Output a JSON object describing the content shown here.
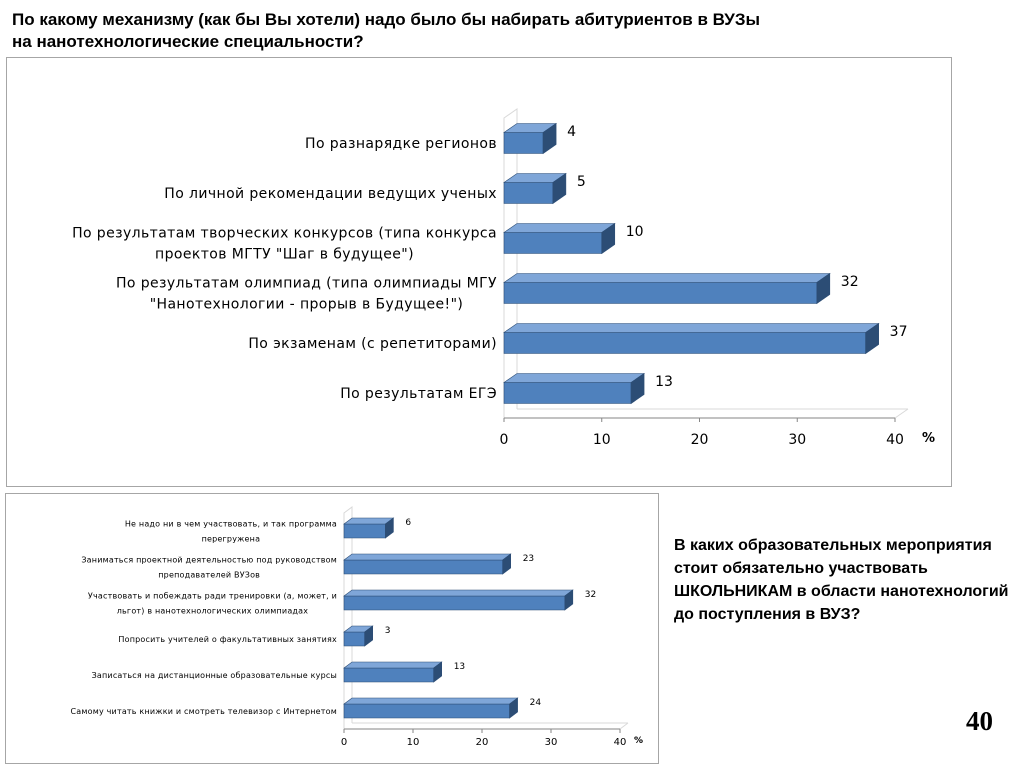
{
  "page": {
    "title_line1": "По какому механизму (как бы Вы хотели) надо было бы набирать абитуриентов в ВУЗы",
    "title_line2": "на нанотехнологические специальности?",
    "question_text": "В каких образовательных мероприятия стоит обязательно участвовать ШКОЛЬНИКАМ в области нанотехнологий до поступления в ВУЗ?",
    "page_number": "40"
  },
  "colors": {
    "bar_front": "#4f81bd",
    "bar_top": "#7fa6d8",
    "bar_side": "#2c4d75",
    "wall": "#d9d9d9",
    "axis": "#868686"
  },
  "chart_data": [
    {
      "type": "bar",
      "orientation": "horizontal",
      "style": "3d",
      "categories": [
        [
          "По разнарядке регионов"
        ],
        [
          "По личной рекомендации ведущих ученых"
        ],
        [
          "По результатам творческих конкурсов (типа конкурса",
          "проектов МГТУ \"Шаг в будущее\")"
        ],
        [
          "По результатам олимпиад (типа олимпиады МГУ",
          "\"Нанотехнологии - прорыв в Будущее!\")"
        ],
        [
          "По экзаменам (с репетиторами)"
        ],
        [
          "По результатам ЕГЭ"
        ]
      ],
      "values": [
        4,
        5,
        10,
        32,
        37,
        13
      ],
      "value_labels": [
        "4",
        "5",
        "10",
        "32",
        "37",
        "13"
      ],
      "x_ticks": [
        "0",
        "10",
        "20",
        "30",
        "40"
      ],
      "xlim": [
        0,
        40
      ],
      "xlabel": "%",
      "grid": false,
      "legend": "none"
    },
    {
      "type": "bar",
      "orientation": "horizontal",
      "style": "3d",
      "categories": [
        [
          "Не надо ни в чем участвовать, и так программа",
          "перегружена"
        ],
        [
          "Заниматься проектной деятельностью под руководством",
          "преподавателей ВУЗов"
        ],
        [
          "Участвовать и побеждать ради тренировки (а, может, и",
          "льгот) в нанотехнологических олимпиадах"
        ],
        [
          "Попросить учителей о факультативных занятиях"
        ],
        [
          "Записаться на дистанционные образовательные курсы"
        ],
        [
          "Самому читать книжки и смотреть телевизор с Интернетом"
        ]
      ],
      "values": [
        6,
        23,
        32,
        3,
        13,
        24
      ],
      "value_labels": [
        "6",
        "23",
        "32",
        "3",
        "13",
        "24"
      ],
      "x_ticks": [
        "0",
        "10",
        "20",
        "30",
        "40"
      ],
      "xlim": [
        0,
        40
      ],
      "xlabel": "%",
      "grid": false,
      "legend": "none"
    }
  ]
}
